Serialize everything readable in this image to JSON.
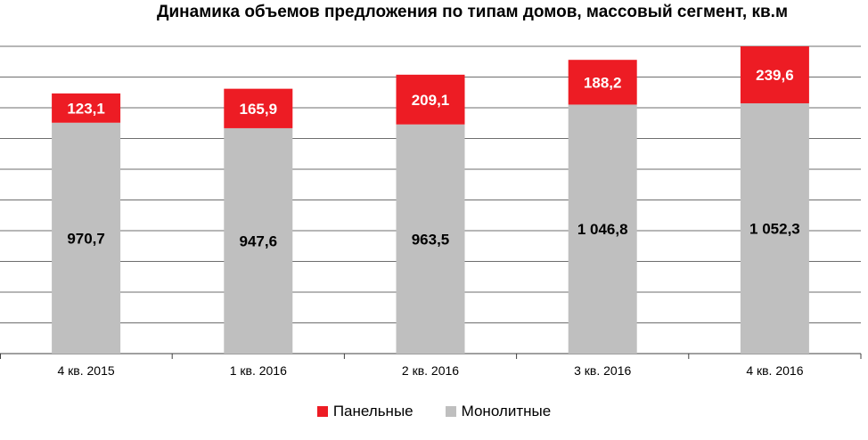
{
  "chart_data": {
    "type": "bar",
    "stacked": true,
    "title": "Динамика объемов предложения по типам домов, массовый сегмент, кв.м",
    "categories": [
      "4 кв. 2015",
      "1 кв. 2016",
      "2 кв. 2016",
      "3 кв. 2016",
      "4 кв. 2016"
    ],
    "series": [
      {
        "name": "Монолитные",
        "color": "#bfbfbf",
        "values": [
          970.7,
          947.6,
          963.5,
          1046.8,
          1052.3
        ],
        "labels": [
          "970,7",
          "947,6",
          "963,5",
          "1 046,8",
          "1 052,3"
        ]
      },
      {
        "name": "Панельные",
        "color": "#ed1c24",
        "values": [
          123.1,
          165.9,
          209.1,
          188.2,
          239.6
        ],
        "labels": [
          "123,1",
          "165,9",
          "209,1",
          "188,2",
          "239,6"
        ]
      }
    ],
    "ylim": [
      0,
      1291.9
    ],
    "grid": true,
    "legend_position": "bottom",
    "legend_order": [
      "Панельные",
      "Монолитные"
    ]
  }
}
